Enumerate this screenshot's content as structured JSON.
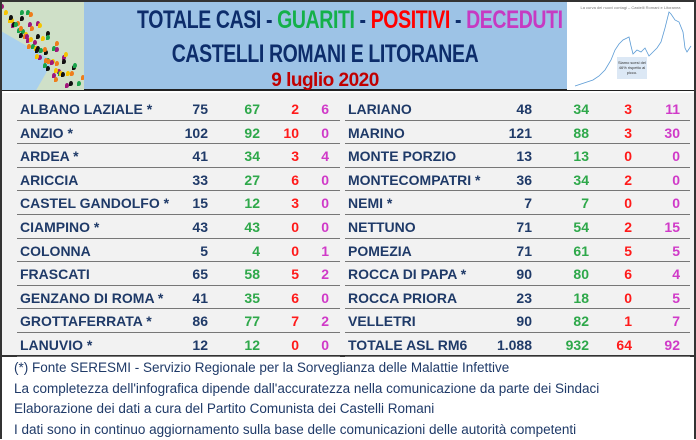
{
  "header": {
    "title_parts": [
      {
        "text": "TOTALE CASI",
        "color": "#0d2d6b"
      },
      {
        "text": " - ",
        "color": "#0d2d6b"
      },
      {
        "text": "GUARITI",
        "color": "#14b04a"
      },
      {
        "text": " - ",
        "color": "#0d2d6b"
      },
      {
        "text": "POSITIVI",
        "color": "#ff0000"
      },
      {
        "text": " - ",
        "color": "#0d2d6b"
      },
      {
        "text": "DECEDUTI",
        "color": "#c63ac2"
      }
    ],
    "subtitle": "CASTELLI ROMANI E LITORANEA",
    "date": "9 luglio 2020",
    "chart_thumb": {
      "caption": "La curva dei nuovi contagi – Castelli Romani e Litoranea",
      "note": "Siamo scesi del 46% rispetto al picco."
    }
  },
  "colors": {
    "totale": "#1f3a68",
    "guariti": "#2ea84a",
    "positivi": "#ff1a1a",
    "deceduti": "#d03ac8"
  },
  "left_rows": [
    {
      "name": "ALBANO LAZIALE *",
      "totale": "75",
      "guariti": "67",
      "positivi": "2",
      "deceduti": "6"
    },
    {
      "name": "ANZIO *",
      "totale": "102",
      "guariti": "92",
      "positivi": "10",
      "deceduti": "0"
    },
    {
      "name": "ARDEA *",
      "totale": "41",
      "guariti": "34",
      "positivi": "3",
      "deceduti": "4"
    },
    {
      "name": "ARICCIA",
      "totale": "33",
      "guariti": "27",
      "positivi": "6",
      "deceduti": "0"
    },
    {
      "name": "CASTEL GANDOLFO *",
      "totale": "15",
      "guariti": "12",
      "positivi": "3",
      "deceduti": "0"
    },
    {
      "name": "CIAMPINO *",
      "totale": "43",
      "guariti": "43",
      "positivi": "0",
      "deceduti": "0"
    },
    {
      "name": "COLONNA",
      "totale": "5",
      "guariti": "4",
      "positivi": "0",
      "deceduti": "1"
    },
    {
      "name": "FRASCATI",
      "totale": "65",
      "guariti": "58",
      "positivi": "5",
      "deceduti": "2"
    },
    {
      "name": "GENZANO DI ROMA *",
      "totale": "41",
      "guariti": "35",
      "positivi": "6",
      "deceduti": "0"
    },
    {
      "name": "GROTTAFERRATA *",
      "totale": "86",
      "guariti": "77",
      "positivi": "7",
      "deceduti": "2"
    },
    {
      "name": "LANUVIO *",
      "totale": "12",
      "guariti": "12",
      "positivi": "0",
      "deceduti": "0"
    }
  ],
  "right_rows": [
    {
      "name": "LARIANO",
      "totale": "48",
      "guariti": "34",
      "positivi": "3",
      "deceduti": "11"
    },
    {
      "name": "MARINO",
      "totale": "121",
      "guariti": "88",
      "positivi": "3",
      "deceduti": "30"
    },
    {
      "name": "MONTE PORZIO",
      "totale": "13",
      "guariti": "13",
      "positivi": "0",
      "deceduti": "0"
    },
    {
      "name": "MONTECOMPATRI *",
      "totale": "36",
      "guariti": "34",
      "positivi": "2",
      "deceduti": "0"
    },
    {
      "name": "NEMI *",
      "totale": "7",
      "guariti": "7",
      "positivi": "0",
      "deceduti": "0"
    },
    {
      "name": "NETTUNO",
      "totale": "71",
      "guariti": "54",
      "positivi": "2",
      "deceduti": "15"
    },
    {
      "name": "POMEZIA",
      "totale": "71",
      "guariti": "61",
      "positivi": "5",
      "deceduti": "5"
    },
    {
      "name": "ROCCA DI PAPA *",
      "totale": "90",
      "guariti": "80",
      "positivi": "6",
      "deceduti": "4"
    },
    {
      "name": "ROCCA PRIORA",
      "totale": "23",
      "guariti": "18",
      "positivi": "0",
      "deceduti": "5"
    },
    {
      "name": "VELLETRI",
      "totale": "90",
      "guariti": "82",
      "positivi": "1",
      "deceduti": "7"
    },
    {
      "name": "TOTALE ASL RM6",
      "totale": "1.088",
      "guariti": "932",
      "positivi": "64",
      "deceduti": "92"
    }
  ],
  "footer": [
    "(*) Fonte SERESMI - Servizio Regionale per la Sorveglianza delle Malattie Infettive",
    "La completezza dell'infografica dipende dall'accuratezza nella comunicazione da parte dei Sindaci",
    "Elaborazione dei dati a cura del Partito Comunista dei Castelli Romani",
    "I dati sono in continuo aggiornamento sulla base delle comunicazioni delle autorità competenti"
  ]
}
